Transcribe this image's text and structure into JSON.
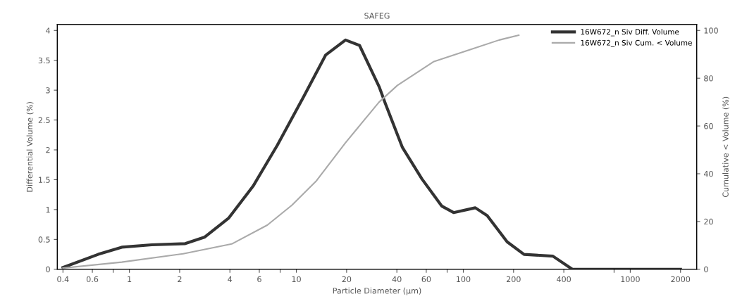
{
  "chart_data": {
    "type": "line",
    "title": "SAFEG",
    "xlabel": "Particle Diameter (µm)",
    "ylabel": "Differential Volume (%)",
    "y2label": "Cumulative < Volume (%)",
    "log": "x",
    "grid": false,
    "legend": "top right",
    "marker": "none",
    "line_style": "solid",
    "xlim": [
      0.37,
      2500
    ],
    "xticks": [
      0.4,
      0.6,
      {
        "value": 0.8,
        "label": null
      },
      1,
      2,
      4,
      6,
      {
        "value": 8,
        "label": null
      },
      10,
      20,
      40,
      60,
      {
        "value": 80,
        "label": null
      },
      100,
      200,
      400,
      {
        "value": 800,
        "label": null
      },
      1000,
      2000
    ],
    "ylim": [
      0,
      4.1
    ],
    "yticks": [
      0,
      0.5,
      1,
      1.5,
      2,
      2.5,
      3,
      3.5,
      4
    ],
    "y2lim": [
      0,
      102.5
    ],
    "y2ticks": [
      0,
      20,
      40,
      60,
      80,
      100
    ],
    "series": [
      {
        "name": "16W672_n Siv Diff. Volume",
        "color": "#333333",
        "x": [
          0.4,
          0.65,
          0.9,
          1.36,
          2.16,
          2.83,
          3.94,
          5.5,
          7.7,
          11.1,
          15,
          19.7,
          23.9,
          31.3,
          34.2,
          43.2,
          56.6,
          74.2,
          87.5,
          118,
          139,
          183,
          231,
          344,
          450,
          2000
        ],
        "values": [
          0.03,
          0.25,
          0.37,
          0.41,
          0.43,
          0.54,
          0.86,
          1.39,
          2.08,
          2.9,
          3.59,
          3.84,
          3.75,
          3.06,
          2.77,
          2.04,
          1.51,
          1.06,
          0.95,
          1.03,
          0.9,
          0.46,
          0.25,
          0.22,
          0,
          0
        ]
      },
      {
        "name": "16W672_n Siv Cum. < Volume",
        "color": "#aaaaaa",
        "axis": "y2",
        "x": [
          0.4,
          0.9,
          2.1,
          4.1,
          6.7,
          9.4,
          13.1,
          19.7,
          31.3,
          40.3,
          66.7,
          110,
          164,
          215
        ],
        "values": [
          0.5,
          3,
          6.5,
          10.6,
          18.5,
          26.8,
          36.8,
          53,
          70,
          77,
          87,
          92,
          96,
          98
        ]
      }
    ]
  }
}
